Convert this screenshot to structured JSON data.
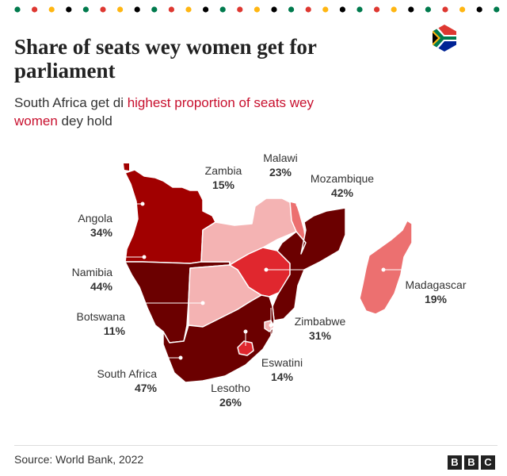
{
  "title": "Share of seats wey women get for parliament",
  "subtitle": {
    "pre": "South Africa get di ",
    "highlight": "highest proportion of seats wey women",
    "post": " dey hold"
  },
  "source": "Source: World Bank, 2022",
  "logo": {
    "letters": [
      "B",
      "B",
      "C"
    ]
  },
  "flag": {
    "icon": "south-africa-flag"
  },
  "colors": {
    "dark": "#6b0000",
    "deep": "#a10000",
    "mid": "#e0272e",
    "light": "#ec7070",
    "pale": "#f4b3b3",
    "accent": "#c8102e"
  },
  "countries": [
    {
      "name": "Angola",
      "value": "34%",
      "share": 34
    },
    {
      "name": "Namibia",
      "value": "44%",
      "share": 44
    },
    {
      "name": "Botswana",
      "value": "11%",
      "share": 11
    },
    {
      "name": "South Africa",
      "value": "47%",
      "share": 47
    },
    {
      "name": "Lesotho",
      "value": "26%",
      "share": 26
    },
    {
      "name": "Eswatini",
      "value": "14%",
      "share": 14
    },
    {
      "name": "Zimbabwe",
      "value": "31%",
      "share": 31
    },
    {
      "name": "Zambia",
      "value": "15%",
      "share": 15
    },
    {
      "name": "Malawi",
      "value": "23%",
      "share": 23
    },
    {
      "name": "Mozambique",
      "value": "42%",
      "share": 42
    },
    {
      "name": "Madagascar",
      "value": "19%",
      "share": 19
    }
  ]
}
